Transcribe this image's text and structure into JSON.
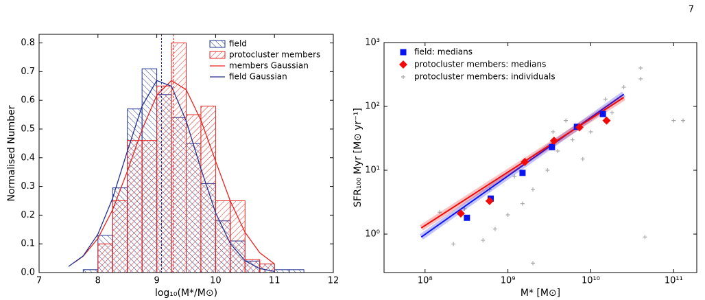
{
  "page_number": "7",
  "chart_data": [
    {
      "type": "histogram",
      "xlabel": "log₁₀(M*/M⊙)",
      "ylabel": "Normalised Number",
      "xlim": [
        7,
        12
      ],
      "ylim": [
        0,
        0.83
      ],
      "xticks": [
        7,
        8,
        9,
        10,
        11,
        12
      ],
      "yticks": [
        {
          "value": 0,
          "label": "0.0"
        },
        0.1,
        0.2,
        0.3,
        0.4,
        0.5,
        0.6,
        0.7,
        0.8
      ],
      "legend": "upper right",
      "bins": [
        7.75,
        8,
        8.25,
        8.5,
        8.75,
        9,
        9.25,
        9.5,
        9.75,
        10,
        10.25,
        10.5,
        10.75,
        11,
        11.25,
        11.5
      ],
      "series": [
        {
          "name": "field",
          "color": "#1f2f8f",
          "values": [
            0.01,
            0.13,
            0.295,
            0.57,
            0.71,
            0.62,
            0.54,
            0.45,
            0.31,
            0.18,
            0.11,
            0.04,
            0.03,
            0.01,
            0.01
          ]
        },
        {
          "name": "protocluster members",
          "color": "#e8201c",
          "values": [
            null,
            0.1,
            0.25,
            0.46,
            0.46,
            0.65,
            0.8,
            0.55,
            0.58,
            0.25,
            0.25,
            0.045,
            0.03,
            null,
            null
          ]
        }
      ],
      "lines": [
        {
          "name": "members Gaussian",
          "color": "#e8201c",
          "x": [
            7.6,
            7.75,
            8,
            8.25,
            8.5,
            8.75,
            9,
            9.25,
            9.5,
            9.75,
            10,
            10.25,
            10.5,
            10.75,
            11
          ],
          "values": [
            0.035,
            0.057,
            0.119,
            0.219,
            0.353,
            0.498,
            0.617,
            0.669,
            0.637,
            0.531,
            0.388,
            0.249,
            0.14,
            0.069,
            0.03
          ]
        },
        {
          "name": "field Gaussian",
          "color": "#1f2f8f",
          "x": [
            7.5,
            7.75,
            8,
            8.25,
            8.5,
            8.75,
            9,
            9.25,
            9.5,
            9.75,
            10,
            10.25,
            10.5,
            10.75,
            11
          ],
          "values": [
            0.021,
            0.058,
            0.134,
            0.259,
            0.423,
            0.58,
            0.669,
            0.649,
            0.528,
            0.362,
            0.208,
            0.101,
            0.041,
            0.014,
            0.004
          ]
        }
      ],
      "vlines": [
        {
          "x": 9.08,
          "color": "#1f2f8f"
        },
        {
          "x": 9.28,
          "color": "#e8201c"
        }
      ]
    },
    {
      "type": "scatter",
      "xscale": "log",
      "yscale": "log",
      "xlabel": "M* [M⊙]",
      "ylabel": "SFR₁₀₀ Myr [M⊙ yr⁻¹]",
      "xlim": [
        32000000,
        190000000000
      ],
      "ylim": [
        0.25,
        1000
      ],
      "xticks": [
        {
          "value": 100000000,
          "label": "10⁸"
        },
        {
          "value": 1000000000,
          "label": "10⁹"
        },
        {
          "value": 10000000000,
          "label": "10¹⁰"
        },
        {
          "value": 100000000000,
          "label": "10¹¹"
        }
      ],
      "yticks": [
        {
          "value": 1,
          "label": "10⁰"
        },
        {
          "value": 10,
          "label": "10¹"
        },
        {
          "value": 100,
          "label": "10²"
        },
        {
          "value": 1000,
          "label": "10³"
        }
      ],
      "legend": "upper left",
      "series": [
        {
          "name": "field: medians",
          "color": "#0a14f0",
          "marker": "square",
          "x": [
            320000000,
            620000000,
            1500000000,
            3400000000,
            6800000000,
            14000000000
          ],
          "values": [
            1.8,
            3.6,
            9.1,
            23,
            48,
            76
          ]
        },
        {
          "name": "protocluster members: medians",
          "color": "#f00a0a",
          "marker": "diamond",
          "x": [
            270000000,
            600000000,
            1600000000,
            3600000000,
            7300000000,
            15500000000
          ],
          "values": [
            2.1,
            3.3,
            13.5,
            29,
            47,
            60
          ]
        },
        {
          "name": "protocluster members: individuals",
          "color": "#aaaaaa",
          "marker": "plus",
          "x": [
            100000000000,
            130000000000,
            40000000000,
            40000000000,
            45000000000,
            25000000000,
            15000000000,
            10000000000,
            6000000000,
            4000000000,
            3000000000,
            2000000000,
            1500000000,
            1000000000,
            700000000,
            500000000,
            300000000,
            150000000,
            220000000,
            2000000000,
            8000000000,
            1200000000,
            600000000,
            3500000000,
            18000000000,
            5000000000
          ],
          "values": [
            60,
            60,
            400,
            270,
            0.9,
            200,
            130,
            40,
            30,
            20,
            10,
            5,
            3,
            2,
            1.2,
            0.8,
            2.5,
            2.2,
            0.7,
            0.35,
            15,
            8,
            5,
            40,
            80,
            60
          ]
        }
      ],
      "fits": [
        {
          "color": "#0a14f0",
          "x": [
            90000000,
            25000000000
          ],
          "values": [
            0.9,
            155
          ]
        },
        {
          "color": "#f00a0a",
          "x": [
            90000000,
            25000000000
          ],
          "values": [
            1.25,
            138
          ]
        }
      ]
    }
  ]
}
